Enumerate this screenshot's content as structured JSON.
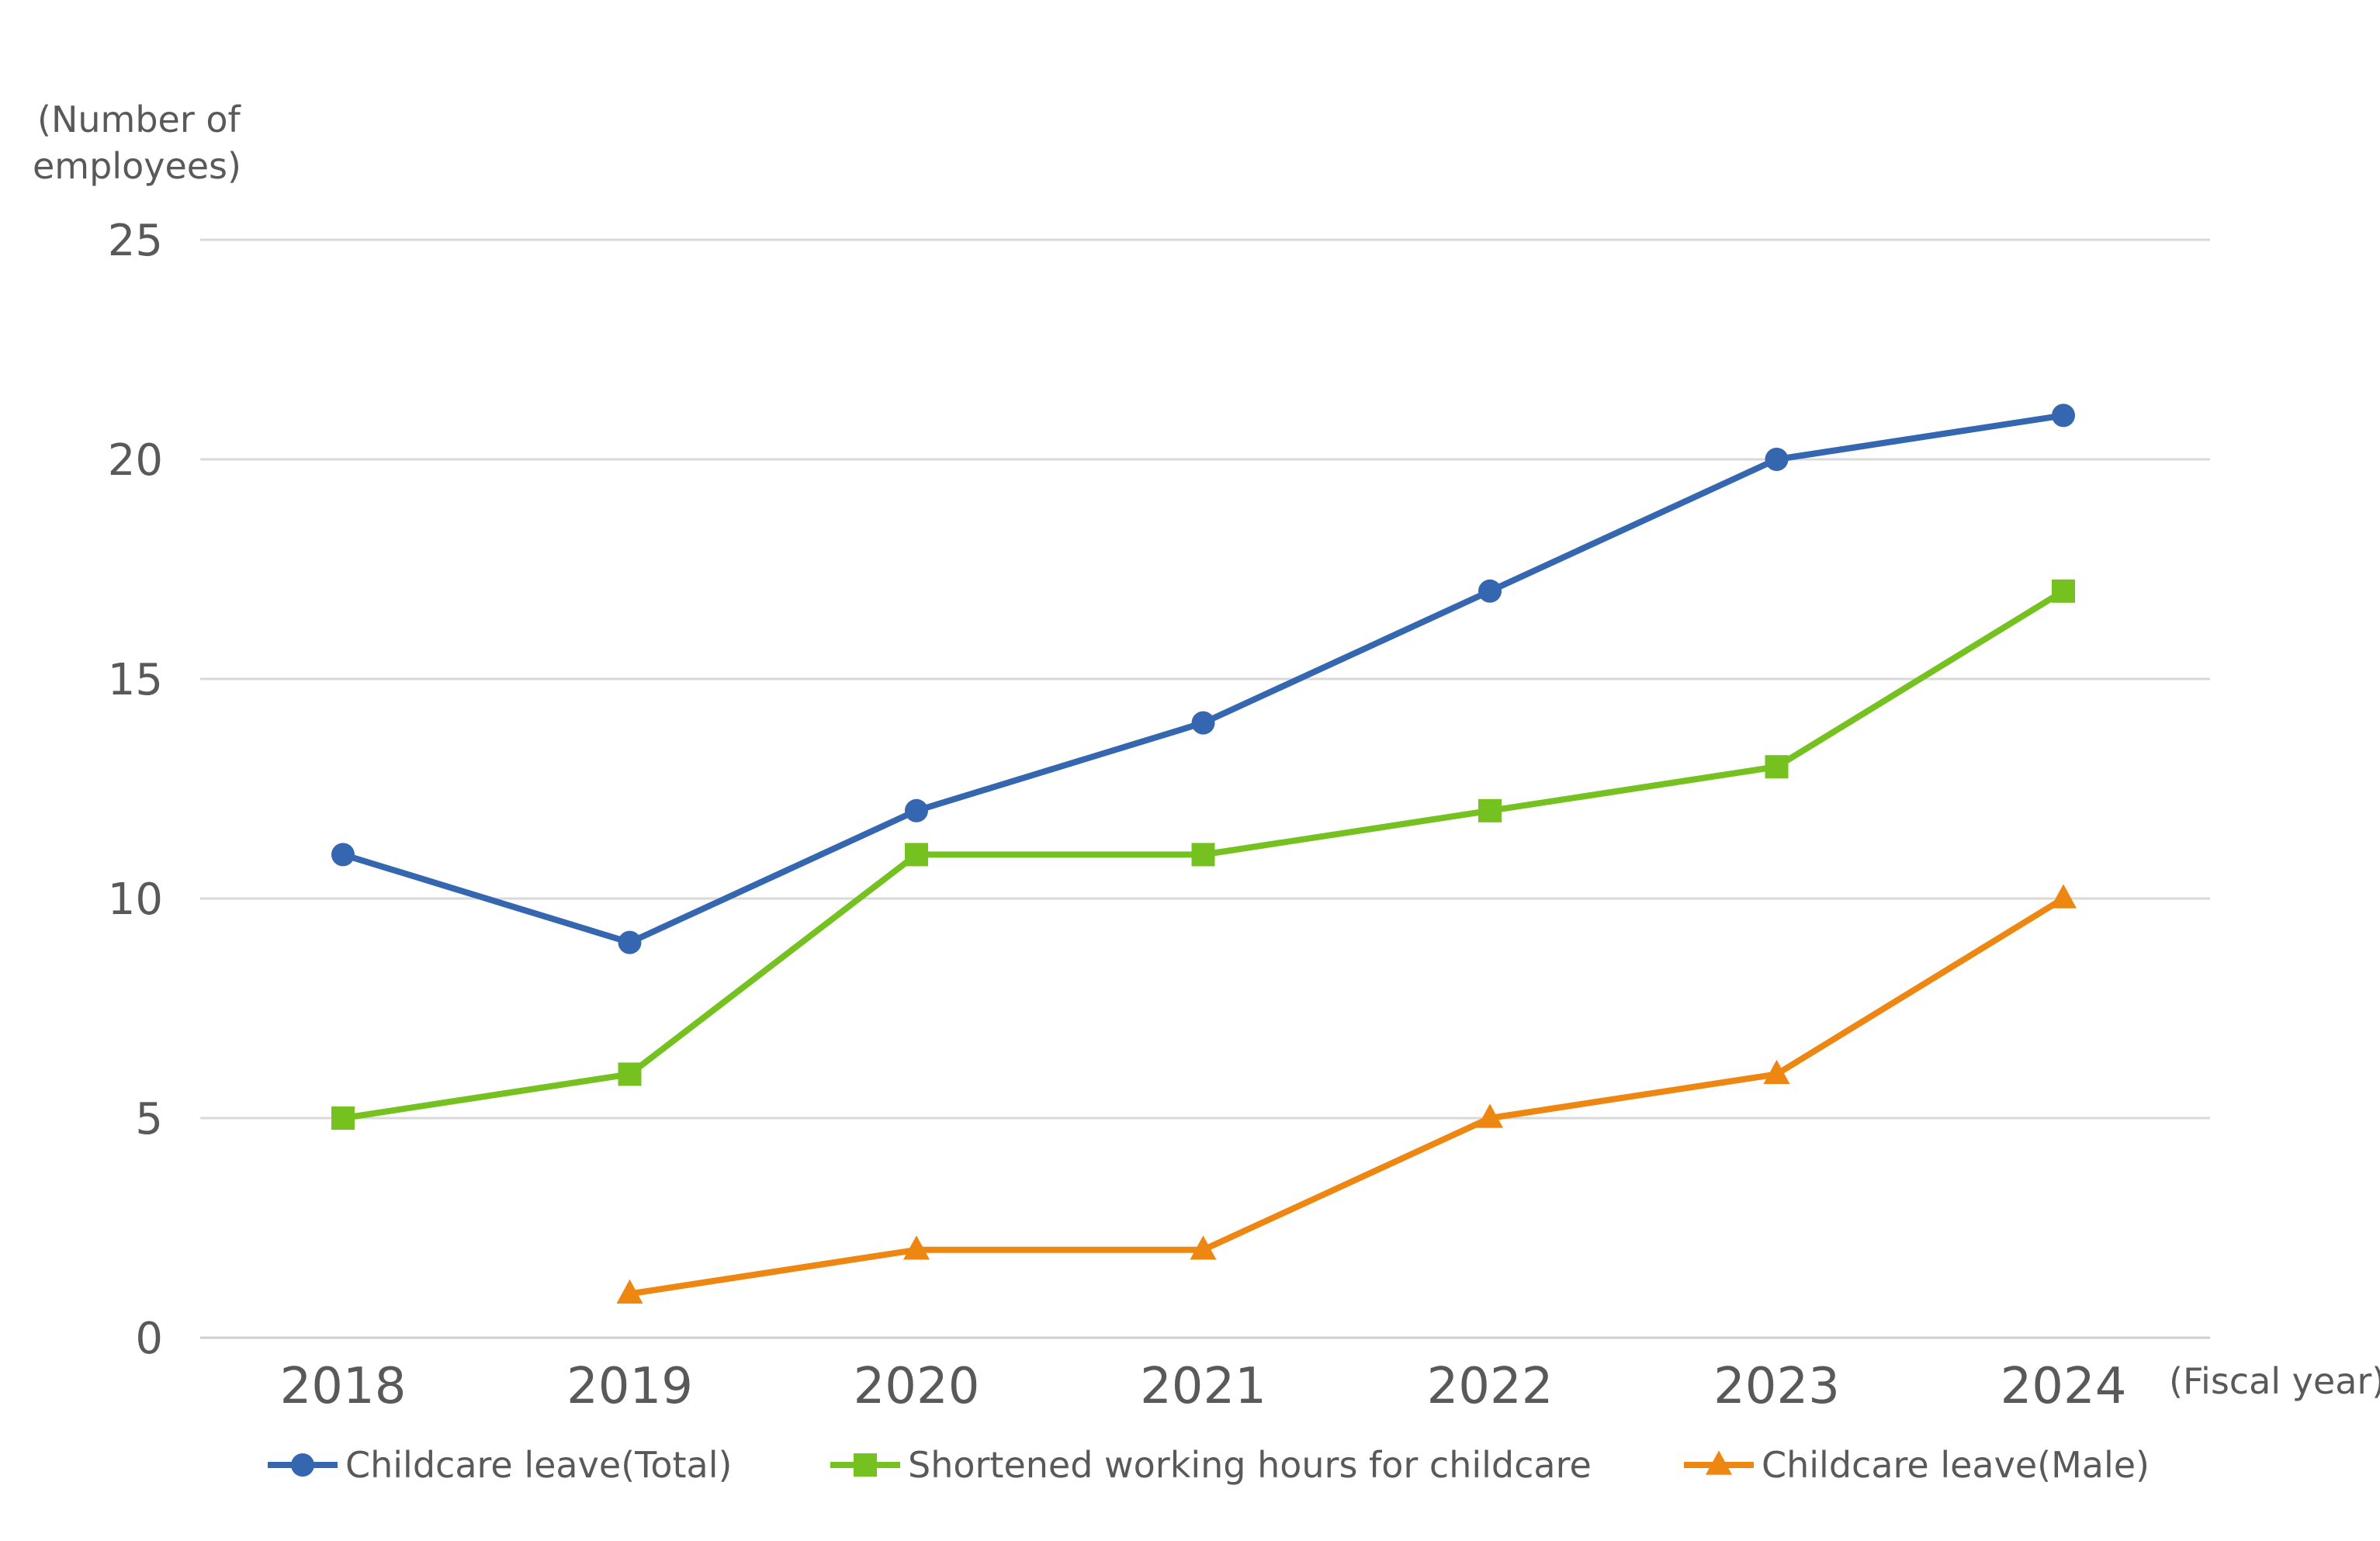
{
  "chart_data": {
    "type": "line",
    "title": "",
    "ylabel": "(Number of employees)",
    "ylabel_lines": [
      "(Number of",
      "employees)"
    ],
    "xlabel": "(Fiscal year)",
    "categories": [
      "2018",
      "2019",
      "2020",
      "2021",
      "2022",
      "2023",
      "2024"
    ],
    "ylim": [
      0,
      25
    ],
    "yticks": [
      0,
      5,
      10,
      15,
      20,
      25
    ],
    "grid": true,
    "legend_position": "bottom",
    "series": [
      {
        "name": "Childcare leave(Total)",
        "values": [
          11,
          9,
          12,
          14,
          17,
          20,
          21
        ],
        "color": "#3566B0",
        "marker": "circle"
      },
      {
        "name": "Shortened working hours for childcare",
        "values": [
          5,
          6,
          11,
          11,
          12,
          13,
          17
        ],
        "color": "#74C120",
        "marker": "square"
      },
      {
        "name": "Childcare leave(Male)",
        "values": [
          null,
          1,
          2,
          2,
          5,
          6,
          10
        ],
        "color": "#ED8711",
        "marker": "triangle"
      }
    ]
  }
}
